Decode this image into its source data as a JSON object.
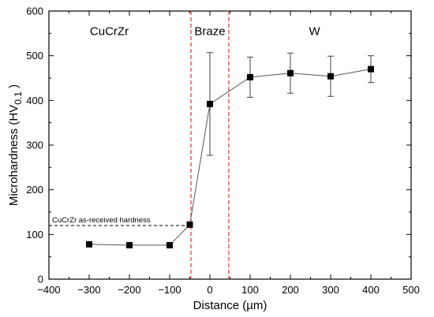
{
  "chart_data": {
    "type": "line",
    "title": "",
    "xlabel": "Distance (µm)",
    "ylabel": {
      "main": "Microhardness (HV",
      "sub": "0.1",
      "end": " )"
    },
    "xlim": [
      -400,
      500
    ],
    "ylim": [
      0,
      600
    ],
    "x_ticks": [
      -400,
      -300,
      -200,
      -100,
      0,
      100,
      200,
      300,
      400,
      500
    ],
    "x_tick_labels": [
      "−400",
      "−300",
      "−200",
      "−100",
      "0",
      "100",
      "200",
      "300",
      "400",
      "500"
    ],
    "y_ticks": [
      0,
      100,
      200,
      300,
      400,
      500,
      600
    ],
    "y_tick_labels": [
      "0",
      "100",
      "200",
      "300",
      "400",
      "500",
      "600"
    ],
    "grid": false,
    "series": [
      {
        "x": [
          -300,
          -200,
          -100,
          -50,
          0,
          100,
          200,
          300,
          400
        ],
        "y": [
          78,
          76,
          76,
          122,
          392,
          452,
          461,
          454,
          470
        ],
        "y_err_low": [
          0,
          0,
          0,
          0,
          115,
          45,
          45,
          45,
          30
        ],
        "y_err_high": [
          0,
          0,
          0,
          0,
          115,
          45,
          45,
          45,
          30
        ],
        "marker": "square",
        "color": "#000000"
      }
    ],
    "regions": [
      {
        "label": "CuCrZr",
        "x": -250,
        "y": 555
      },
      {
        "label": "Braze",
        "x": 0,
        "y": 555
      },
      {
        "label": "W",
        "x": 260,
        "y": 555
      }
    ],
    "vertical_lines": [
      {
        "x": -47,
        "color": "#e8322a",
        "style": "dashed"
      },
      {
        "x": 47,
        "color": "#e8322a",
        "style": "dashed"
      }
    ],
    "reference_line": {
      "label": "CuCrZr as-received hardness",
      "y": 120,
      "x_start": -400,
      "x_end": -50,
      "color": "#000000",
      "style": "dashed"
    }
  }
}
